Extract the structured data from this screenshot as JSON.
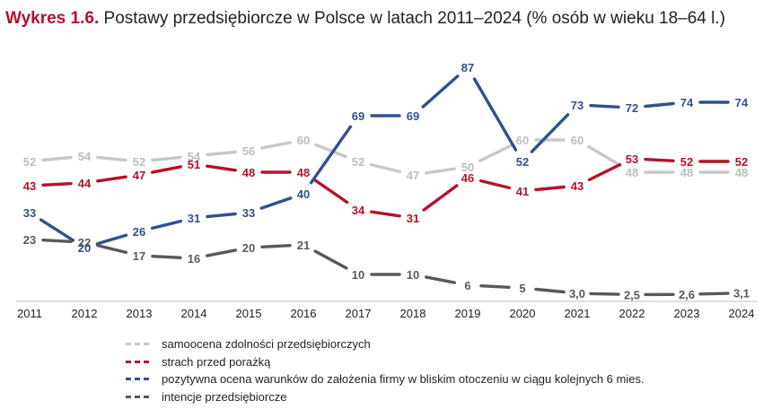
{
  "header": {
    "prefix": "Wykres 1.6.",
    "title": "Postawy przedsiębiorcze w Polsce w latach 2011–2024 (% osób w wieku 18–64 l.)"
  },
  "chart_data": {
    "type": "line",
    "categories": [
      "2011",
      "2012",
      "2013",
      "2014",
      "2015",
      "2016",
      "2017",
      "2018",
      "2019",
      "2020",
      "2021",
      "2022",
      "2023",
      "2024"
    ],
    "ylim": [
      0,
      90
    ],
    "grid": false,
    "legend_placement": "bottom",
    "series": [
      {
        "name": "samoocena zdolności przedsiębiorczych",
        "color": "#c8c8c8",
        "values": [
          52,
          54,
          52,
          54,
          56,
          60,
          52,
          47,
          50,
          60,
          60,
          48,
          48,
          48
        ],
        "labels": [
          "52",
          "54",
          "52",
          "54",
          "56",
          "60",
          "52",
          "47",
          "50",
          "60",
          "60",
          "48",
          "48",
          "48"
        ]
      },
      {
        "name": "strach przed porażką",
        "color": "#b5122b",
        "values": [
          43,
          44,
          47,
          51,
          48,
          48,
          34,
          31,
          46,
          41,
          43,
          53,
          52,
          52
        ],
        "labels": [
          "43",
          "44",
          "47",
          "51",
          "48",
          "48",
          "34",
          "31",
          "46",
          "41",
          "43",
          "53",
          "52",
          "52"
        ]
      },
      {
        "name": "pozytywna ocena warunków do założenia firmy w bliskim otoczeniu w ciągu kolejnych 6 mies.",
        "color": "#33508f",
        "values": [
          33,
          20,
          26,
          31,
          33,
          40,
          69,
          69,
          87,
          52,
          73,
          72,
          74,
          74
        ],
        "labels": [
          "33",
          "20",
          "26",
          "31",
          "33",
          "40",
          "69",
          "69",
          "87",
          "52",
          "73",
          "72",
          "74",
          "74"
        ]
      },
      {
        "name": "intencje przedsiębiorcze",
        "color": "#595959",
        "values": [
          23,
          22,
          17,
          16,
          20,
          21,
          10,
          10,
          6,
          5,
          3.0,
          2.5,
          2.6,
          3.1
        ],
        "labels": [
          "23",
          "22",
          "17",
          "16",
          "20",
          "21",
          "10",
          "10",
          "6",
          "5",
          "3,0",
          "2,5",
          "2,6",
          "3,1"
        ]
      }
    ]
  }
}
